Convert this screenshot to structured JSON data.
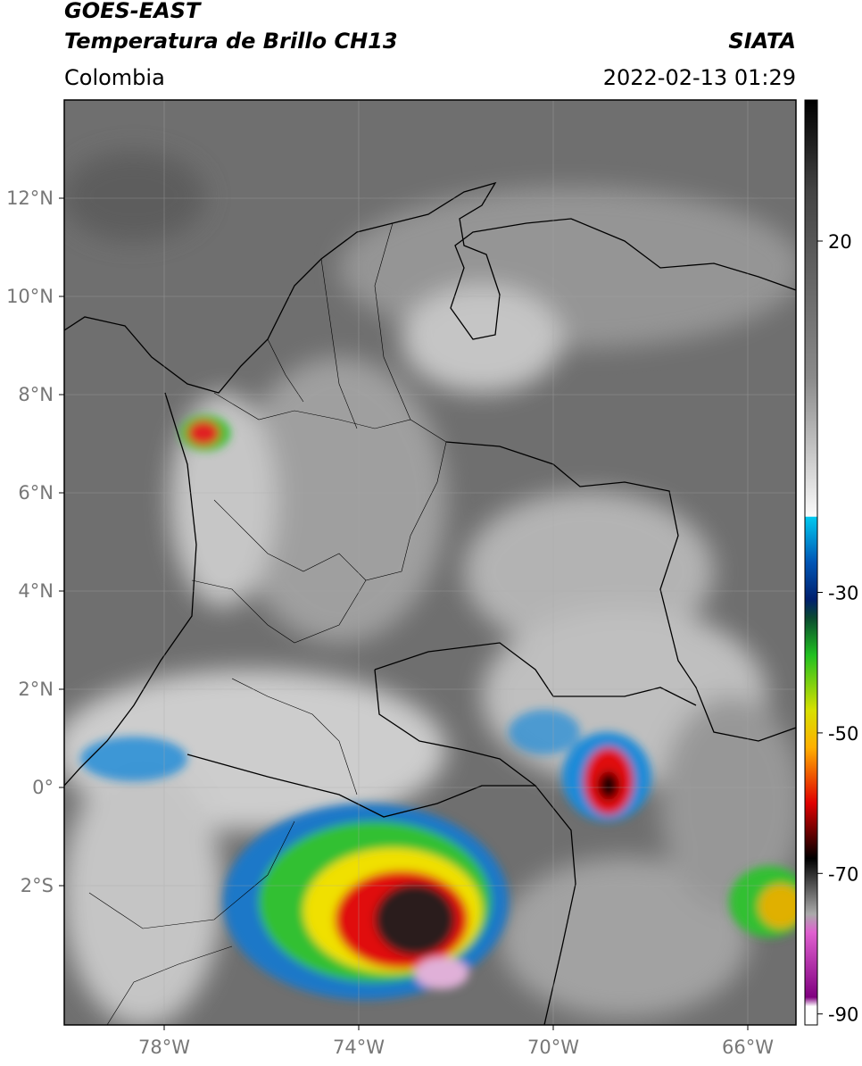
{
  "header": {
    "title": "GOES-EAST",
    "subtitle": "Temperatura de Brillo CH13",
    "region": "Colombia",
    "source": "SIATA",
    "datetime": "2022-02-13 01:29"
  },
  "map": {
    "lat_ticks": [
      "12°N",
      "10°N",
      "8°N",
      "6°N",
      "4°N",
      "2°N",
      "0°",
      "2°S"
    ],
    "lon_ticks": [
      "78°W",
      "74°W",
      "70°W",
      "66°W"
    ]
  },
  "colorbar": {
    "ticks": [
      20,
      -30,
      -50,
      -70,
      -90
    ]
  }
}
